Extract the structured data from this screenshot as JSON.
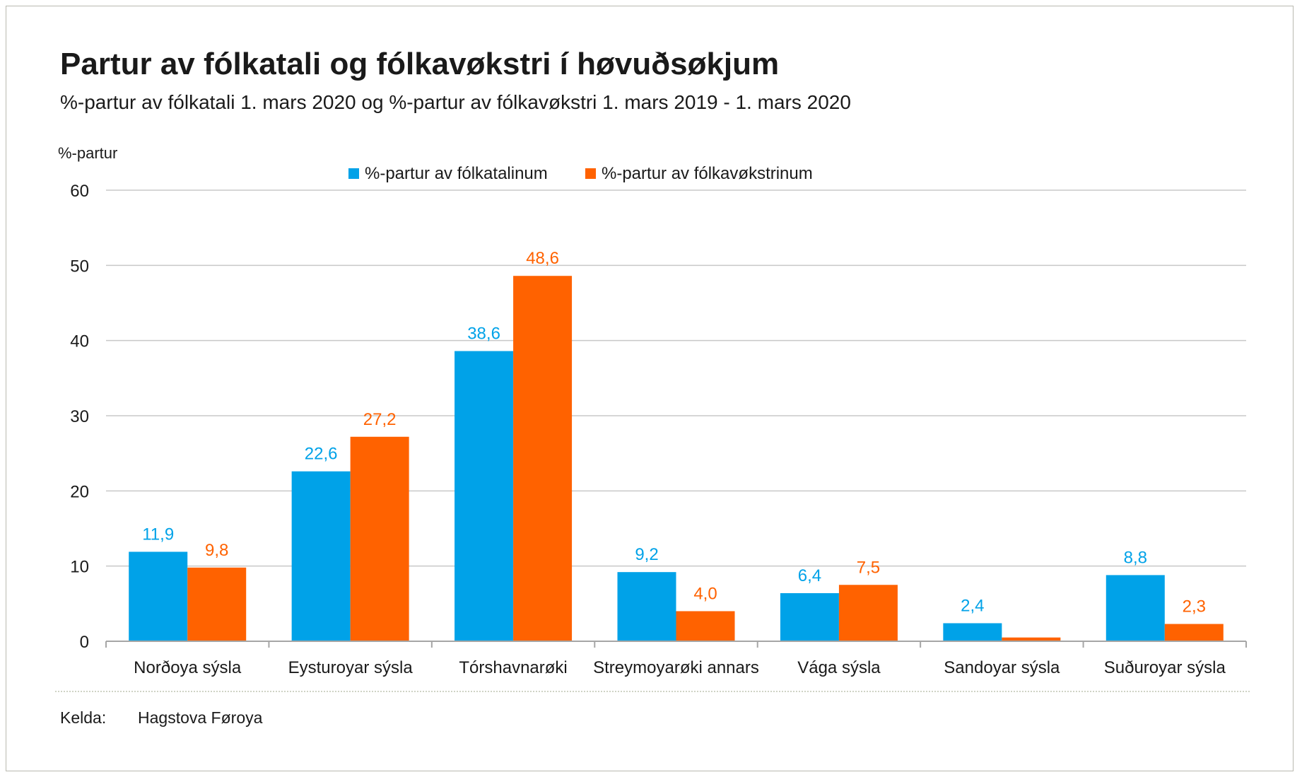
{
  "chart_data": {
    "type": "bar",
    "title": "Partur av fólkatali og fólkavøkstri í høvuðsøkjum",
    "subtitle": "%-partur av fólkatali 1. mars 2020 og %-partur av fólkavøkstri 1. mars 2019 - 1. mars 2020",
    "ylabel": "%-partur",
    "xlabel": "",
    "ylim": [
      0,
      60
    ],
    "yticks": [
      "0",
      "10",
      "20",
      "30",
      "40",
      "50",
      "60"
    ],
    "grid": true,
    "legend_position": "top-center",
    "categories": [
      "Norðoya sýsla",
      "Eysturoyar sýsla",
      "Tórshavnarøki",
      "Streymoyarøki annars",
      "Vága sýsla",
      "Sandoyar sýsla",
      "Suðuroyar sýsla"
    ],
    "series": [
      {
        "name": "%-partur av fólkatalinum",
        "color": "#00a2e8",
        "values": [
          11.9,
          22.6,
          38.6,
          9.2,
          6.4,
          2.4,
          8.8
        ],
        "labels": [
          "11,9",
          "22,6",
          "38,6",
          "9,2",
          "6,4",
          "2,4",
          "8,8"
        ]
      },
      {
        "name": "%-partur av fólkavøkstrinum",
        "color": "#ff6200",
        "values": [
          9.8,
          27.2,
          48.6,
          4.0,
          7.5,
          0.5,
          2.3
        ],
        "labels": [
          "9,8",
          "27,2",
          "48,6",
          "4,0",
          "7,5",
          "",
          "2,3"
        ]
      }
    ]
  },
  "source": {
    "label": "Kelda:",
    "value": "Hagstova Føroya"
  }
}
